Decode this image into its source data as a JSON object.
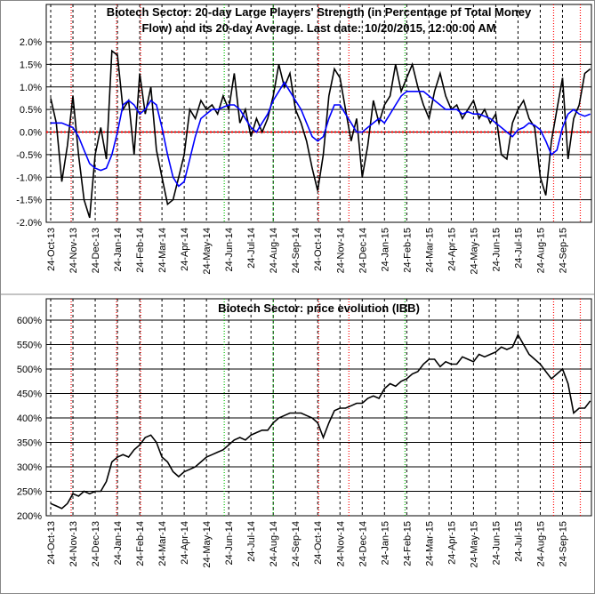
{
  "chart_data": [
    {
      "type": "line",
      "title": "Biotech Sector: 20-day Large Players' Strength (in Percentage of Total Money Flow) and its 20-day Average. Last date: 10/20/2015, 12:00:00 AM",
      "title_lines": [
        "Biotech Sector: 20-day Large Players' Strength (in Percentage of Total Money",
        "Flow) and its 20-day Average. Last date: 10/20/2015, 12:00:00 AM"
      ],
      "x": [
        0,
        0.25,
        0.5,
        0.75,
        1,
        1.25,
        1.5,
        1.75,
        2,
        2.25,
        2.5,
        2.75,
        3,
        3.25,
        3.5,
        3.75,
        4,
        4.25,
        4.5,
        4.75,
        5,
        5.25,
        5.5,
        5.75,
        6,
        6.25,
        6.5,
        6.75,
        7,
        7.25,
        7.5,
        7.75,
        8,
        8.25,
        8.5,
        8.75,
        9,
        9.25,
        9.5,
        9.75,
        10,
        10.25,
        10.5,
        10.75,
        11,
        11.25,
        11.5,
        11.75,
        12,
        12.25,
        12.5,
        12.75,
        13,
        13.25,
        13.5,
        13.75,
        14,
        14.25,
        14.5,
        14.75,
        15,
        15.25,
        15.5,
        15.75,
        16,
        16.25,
        16.5,
        16.75,
        17,
        17.25,
        17.5,
        17.75,
        18,
        18.25,
        18.5,
        18.75,
        19,
        19.25,
        19.5,
        19.75,
        20,
        20.25,
        20.5,
        20.75,
        21,
        21.25,
        21.5,
        21.75,
        22,
        22.25,
        22.5,
        22.75,
        23,
        23.25,
        23.5,
        23.75,
        24,
        24.25
      ],
      "series": [
        {
          "color": "#000000",
          "values": [
            0.75,
            0.2,
            -1.1,
            -0.3,
            0.8,
            -0.5,
            -1.5,
            -1.9,
            -0.5,
            0.1,
            -0.6,
            1.8,
            1.7,
            0.5,
            0.7,
            -0.5,
            1.3,
            0.4,
            1.0,
            -0.4,
            -1.0,
            -1.6,
            -1.5,
            -1.0,
            -0.5,
            0.5,
            0.3,
            0.7,
            0.5,
            0.6,
            0.4,
            0.8,
            0.5,
            1.3,
            0.2,
            0.5,
            -0.1,
            0.3,
            0.0,
            0.3,
            0.8,
            1.5,
            1.0,
            1.3,
            0.5,
            0.2,
            -0.2,
            -0.8,
            -1.3,
            -0.5,
            0.8,
            1.4,
            1.2,
            0.5,
            -0.2,
            0.3,
            -1.0,
            -0.3,
            0.7,
            0.2,
            0.6,
            0.8,
            1.5,
            0.9,
            1.2,
            1.5,
            1.0,
            0.6,
            0.3,
            0.9,
            1.3,
            0.8,
            0.5,
            0.6,
            0.3,
            0.5,
            0.7,
            0.3,
            0.5,
            0.2,
            0.4,
            -0.5,
            -0.6,
            0.2,
            0.5,
            0.7,
            0.3,
            0.1,
            -1.0,
            -1.4,
            -0.2,
            0.5,
            1.2,
            -0.6,
            0.3,
            0.6,
            1.3,
            1.4
          ]
        },
        {
          "color": "#0000ff",
          "values": [
            0.2,
            0.2,
            0.2,
            0.15,
            0.1,
            -0.1,
            -0.4,
            -0.7,
            -0.8,
            -0.85,
            -0.8,
            -0.5,
            0.0,
            0.6,
            0.7,
            0.6,
            0.4,
            0.5,
            0.7,
            0.6,
            0.1,
            -0.5,
            -1.0,
            -1.2,
            -1.1,
            -0.6,
            -0.1,
            0.3,
            0.4,
            0.5,
            0.5,
            0.55,
            0.6,
            0.6,
            0.5,
            0.3,
            0.1,
            0.0,
            0.2,
            0.4,
            0.7,
            0.9,
            1.1,
            0.9,
            0.7,
            0.5,
            0.2,
            -0.1,
            -0.2,
            -0.1,
            0.3,
            0.6,
            0.6,
            0.4,
            0.2,
            0.0,
            0.0,
            0.1,
            0.2,
            0.3,
            0.2,
            0.4,
            0.6,
            0.8,
            0.9,
            0.9,
            0.9,
            0.9,
            0.8,
            0.7,
            0.6,
            0.5,
            0.5,
            0.5,
            0.4,
            0.45,
            0.4,
            0.4,
            0.35,
            0.3,
            0.2,
            0.1,
            0.0,
            -0.1,
            0.05,
            0.1,
            0.2,
            0.15,
            0.05,
            -0.2,
            -0.5,
            -0.4,
            0.1,
            0.4,
            0.5,
            0.4,
            0.35,
            0.4
          ]
        }
      ],
      "zero_line_color": "#ff0000",
      "xlim": [
        -0.2,
        24.3
      ],
      "xticks": [
        {
          "value": 0,
          "label": "24-Oct-13"
        },
        {
          "value": 1,
          "label": "24-Nov-13"
        },
        {
          "value": 2,
          "label": "24-Dec-13"
        },
        {
          "value": 3,
          "label": "24-Jan-14"
        },
        {
          "value": 4,
          "label": "24-Feb-14"
        },
        {
          "value": 5,
          "label": "24-Mar-14"
        },
        {
          "value": 6,
          "label": "24-Apr-14"
        },
        {
          "value": 7,
          "label": "24-May-14"
        },
        {
          "value": 8,
          "label": "24-Jun-14"
        },
        {
          "value": 9,
          "label": "24-Jul-14"
        },
        {
          "value": 10,
          "label": "24-Aug-14"
        },
        {
          "value": 11,
          "label": "24-Sep-14"
        },
        {
          "value": 12,
          "label": "24-Oct-14"
        },
        {
          "value": 13,
          "label": "24-Nov-14"
        },
        {
          "value": 14,
          "label": "24-Dec-14"
        },
        {
          "value": 15,
          "label": "24-Jan-15"
        },
        {
          "value": 16,
          "label": "24-Feb-15"
        },
        {
          "value": 17,
          "label": "24-Mar-15"
        },
        {
          "value": 18,
          "label": "24-Apr-15"
        },
        {
          "value": 19,
          "label": "24-May-15"
        },
        {
          "value": 20,
          "label": "24-Jun-15"
        },
        {
          "value": 21,
          "label": "24-Jul-15"
        },
        {
          "value": 22,
          "label": "24-Aug-15"
        },
        {
          "value": 23,
          "label": "24-Sep-15"
        }
      ],
      "ylim": [
        -2,
        2
      ],
      "yticks": [
        {
          "value": 2,
          "label": "2.0%"
        },
        {
          "value": 1.5,
          "label": "1.5%"
        },
        {
          "value": 1,
          "label": "1.0%"
        },
        {
          "value": 0.5,
          "label": "0.5%"
        },
        {
          "value": 0,
          "label": "0.0%"
        },
        {
          "value": -0.5,
          "label": "-0.5%"
        },
        {
          "value": -1,
          "label": "-1.0%"
        },
        {
          "value": -1.5,
          "label": "-1.5%"
        },
        {
          "value": -2,
          "label": "-2.0%"
        }
      ],
      "grid": true,
      "signal_lines": [
        {
          "x": 0.92,
          "color": "#ff0000"
        },
        {
          "x": 2.96,
          "color": "#ff0000"
        },
        {
          "x": 4.04,
          "color": "#ff0000"
        },
        {
          "x": 7.8,
          "color": "#00c000"
        },
        {
          "x": 10.0,
          "color": "#00c000"
        },
        {
          "x": 12.04,
          "color": "#ff0000"
        },
        {
          "x": 13.4,
          "color": "#ff0000"
        },
        {
          "x": 15.92,
          "color": "#00c000"
        },
        {
          "x": 22.6,
          "color": "#ff0000"
        },
        {
          "x": 23.8,
          "color": "#ff0000"
        }
      ]
    },
    {
      "type": "line",
      "title": "Biotech Sector: price evolution (IBB)",
      "x": [
        0,
        0.25,
        0.5,
        0.75,
        1,
        1.25,
        1.5,
        1.75,
        2,
        2.25,
        2.5,
        2.75,
        3,
        3.25,
        3.5,
        3.75,
        4,
        4.25,
        4.5,
        4.75,
        5,
        5.25,
        5.5,
        5.75,
        6,
        6.25,
        6.5,
        6.75,
        7,
        7.25,
        7.5,
        7.75,
        8,
        8.25,
        8.5,
        8.75,
        9,
        9.25,
        9.5,
        9.75,
        10,
        10.25,
        10.5,
        10.75,
        11,
        11.25,
        11.5,
        11.75,
        12,
        12.25,
        12.5,
        12.75,
        13,
        13.25,
        13.5,
        13.75,
        14,
        14.25,
        14.5,
        14.75,
        15,
        15.25,
        15.5,
        15.75,
        16,
        16.25,
        16.5,
        16.75,
        17,
        17.25,
        17.5,
        17.75,
        18,
        18.25,
        18.5,
        18.75,
        19,
        19.25,
        19.5,
        19.75,
        20,
        20.25,
        20.5,
        20.75,
        21,
        21.25,
        21.5,
        21.75,
        22,
        22.25,
        22.5,
        22.75,
        23,
        23.25,
        23.5,
        23.75,
        24,
        24.25
      ],
      "series": [
        {
          "color": "#000000",
          "values": [
            225,
            220,
            215,
            225,
            245,
            240,
            250,
            245,
            250,
            250,
            270,
            310,
            320,
            325,
            320,
            335,
            345,
            360,
            365,
            350,
            320,
            310,
            290,
            280,
            290,
            295,
            300,
            310,
            320,
            325,
            330,
            335,
            345,
            355,
            360,
            355,
            365,
            370,
            375,
            375,
            390,
            400,
            405,
            410,
            410,
            410,
            405,
            400,
            390,
            360,
            390,
            415,
            420,
            420,
            425,
            430,
            430,
            440,
            445,
            440,
            460,
            470,
            465,
            475,
            480,
            490,
            495,
            510,
            520,
            520,
            505,
            515,
            510,
            510,
            525,
            520,
            515,
            530,
            525,
            530,
            535,
            545,
            540,
            545,
            570,
            550,
            530,
            520,
            510,
            495,
            480,
            490,
            500,
            470,
            410,
            420,
            420,
            435
          ]
        }
      ],
      "xlim": [
        -0.2,
        24.3
      ],
      "xticks": [
        {
          "value": 0,
          "label": "24-Oct-13"
        },
        {
          "value": 1,
          "label": "24-Nov-13"
        },
        {
          "value": 2,
          "label": "24-Dec-13"
        },
        {
          "value": 3,
          "label": "24-Jan-14"
        },
        {
          "value": 4,
          "label": "24-Feb-14"
        },
        {
          "value": 5,
          "label": "24-Mar-14"
        },
        {
          "value": 6,
          "label": "24-Apr-14"
        },
        {
          "value": 7,
          "label": "24-May-14"
        },
        {
          "value": 8,
          "label": "24-Jun-14"
        },
        {
          "value": 9,
          "label": "24-Jul-14"
        },
        {
          "value": 10,
          "label": "24-Aug-14"
        },
        {
          "value": 11,
          "label": "24-Sep-14"
        },
        {
          "value": 12,
          "label": "24-Oct-14"
        },
        {
          "value": 13,
          "label": "24-Nov-14"
        },
        {
          "value": 14,
          "label": "24-Dec-14"
        },
        {
          "value": 15,
          "label": "24-Jan-15"
        },
        {
          "value": 16,
          "label": "24-Feb-15"
        },
        {
          "value": 17,
          "label": "24-Mar-15"
        },
        {
          "value": 18,
          "label": "24-Apr-15"
        },
        {
          "value": 19,
          "label": "24-May-15"
        },
        {
          "value": 20,
          "label": "24-Jun-15"
        },
        {
          "value": 21,
          "label": "24-Jul-15"
        },
        {
          "value": 22,
          "label": "24-Aug-15"
        },
        {
          "value": 23,
          "label": "24-Sep-15"
        }
      ],
      "ylim": [
        200,
        600
      ],
      "yticks": [
        {
          "value": 600,
          "label": "600%"
        },
        {
          "value": 550,
          "label": "550%"
        },
        {
          "value": 500,
          "label": "500%"
        },
        {
          "value": 450,
          "label": "450%"
        },
        {
          "value": 400,
          "label": "400%"
        },
        {
          "value": 350,
          "label": "350%"
        },
        {
          "value": 300,
          "label": "300%"
        },
        {
          "value": 250,
          "label": "250%"
        },
        {
          "value": 200,
          "label": "200%"
        }
      ],
      "grid": true,
      "signal_lines": [
        {
          "x": 0.92,
          "color": "#ff0000"
        },
        {
          "x": 2.96,
          "color": "#ff0000"
        },
        {
          "x": 4.04,
          "color": "#ff0000"
        },
        {
          "x": 7.8,
          "color": "#00c000"
        },
        {
          "x": 10.0,
          "color": "#00c000"
        },
        {
          "x": 12.04,
          "color": "#ff0000"
        },
        {
          "x": 13.4,
          "color": "#ff0000"
        },
        {
          "x": 15.92,
          "color": "#00c000"
        },
        {
          "x": 22.6,
          "color": "#ff0000"
        },
        {
          "x": 23.8,
          "color": "#ff0000"
        }
      ]
    }
  ]
}
